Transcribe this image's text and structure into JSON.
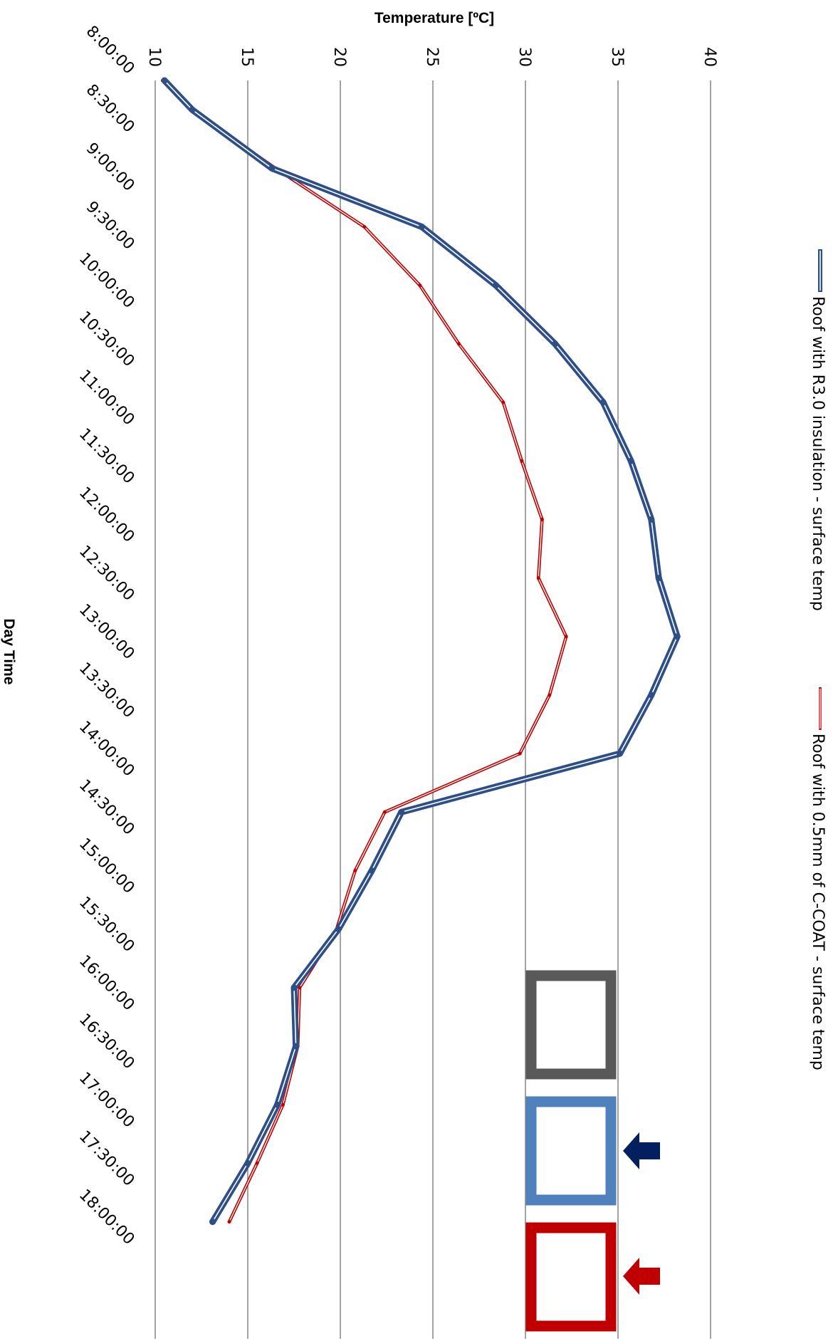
{
  "chart_data": {
    "type": "line",
    "orientation": "rotated-90-clockwise",
    "ylabel": "Temperature [ºC]",
    "xlabel": "Day Time",
    "ylim": [
      10,
      40
    ],
    "y_ticks": [
      "10",
      "15",
      "20",
      "25",
      "30",
      "35",
      "40"
    ],
    "grid": true,
    "categories": [
      "8:00:00",
      "8:30:00",
      "9:00:00",
      "9:30:00",
      "10:00:00",
      "10:30:00",
      "11:00:00",
      "11:30:00",
      "12:00:00",
      "12:30:00",
      "13:00:00",
      "13:30:00",
      "14:00:00",
      "14:30:00",
      "15:00:00",
      "15:30:00",
      "16:00:00",
      "16:30:00",
      "17:00:00",
      "17:30:00",
      "18:00:00"
    ],
    "x": [
      "8:00:00",
      "8:15:00",
      "8:45:00",
      "9:15:00",
      "9:45:00",
      "10:15:00",
      "10:45:00",
      "11:15:00",
      "11:45:00",
      "12:15:00",
      "12:45:00",
      "13:15:00",
      "13:45:00",
      "14:15:00",
      "14:45:00",
      "15:15:00",
      "15:45:00",
      "16:15:00",
      "16:45:00",
      "17:15:00",
      "17:45:00",
      "18:15:00"
    ],
    "legend_position": "right",
    "series": [
      {
        "name": "Roof with R3.0 insulation - surface temp",
        "color": "#2E4F86",
        "style": "thick",
        "values": [
          10.5,
          12.0,
          16.3,
          24.4,
          28.4,
          31.6,
          34.2,
          35.7,
          36.8,
          37.2,
          38.2,
          36.8,
          35.1,
          23.3,
          21.7,
          19.9,
          17.5,
          17.6,
          16.6,
          15.0,
          13.1
        ]
      },
      {
        "name": "Roof with 0.5mm of C-COAT - surface temp",
        "color": "#C00000",
        "style": "thin",
        "values": [
          10.4,
          11.9,
          16.5,
          21.3,
          24.3,
          26.4,
          28.8,
          29.8,
          30.9,
          30.7,
          32.2,
          31.3,
          29.7,
          22.4,
          20.8,
          19.8,
          17.8,
          17.7,
          16.9,
          15.5,
          14.0
        ]
      }
    ]
  },
  "callouts": [
    {
      "name": "gray-box",
      "color": "#595959"
    },
    {
      "name": "blue-box",
      "color": "#4F81BD"
    },
    {
      "name": "red-box",
      "color": "#C00000"
    }
  ],
  "arrows": [
    {
      "name": "navy-arrow",
      "color": "#002060"
    },
    {
      "name": "red-arrow",
      "color": "#C00000"
    }
  ]
}
